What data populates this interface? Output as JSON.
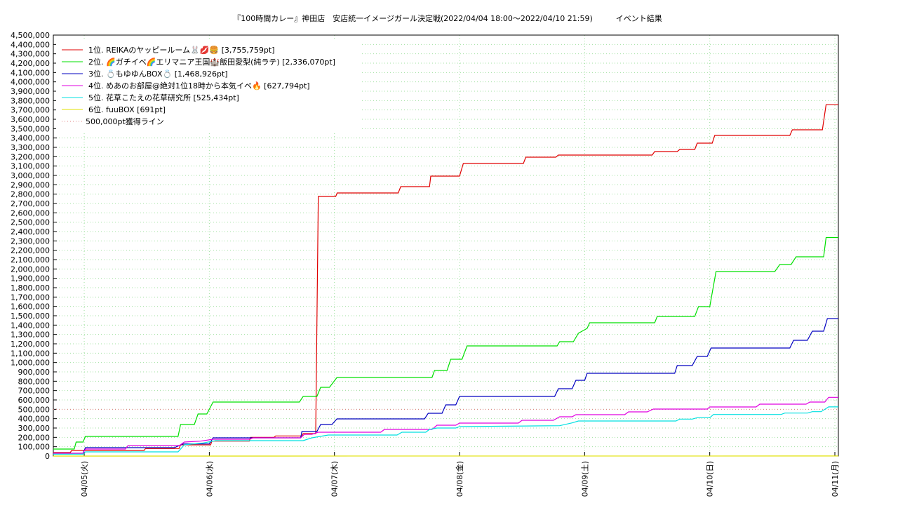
{
  "chart_data": {
    "type": "line",
    "title": "『100時間カレー』神田店　安店統一イメージガール決定戦(2022/04/04 18:00～2022/04/10 21:59)　　　イベント結果",
    "xlim": [
      4.753,
      11.028
    ],
    "xticks": [
      {
        "value": 5,
        "label": "04/05(火)"
      },
      {
        "value": 6,
        "label": "04/06(水)"
      },
      {
        "value": 7,
        "label": "04/07(木)"
      },
      {
        "value": 8,
        "label": "04/08(金)"
      },
      {
        "value": 9,
        "label": "04/09(土)"
      },
      {
        "value": 10,
        "label": "04/10(日)"
      },
      {
        "value": 11,
        "label": "04/11(月)"
      }
    ],
    "ylim": [
      0,
      4500000
    ],
    "yticks": [
      0,
      {
        "value": 100000,
        "label": "100,000"
      },
      {
        "value": 200000,
        "label": "200,000"
      },
      {
        "value": 300000,
        "label": "300,000"
      },
      {
        "value": 400000,
        "label": "400,000"
      },
      {
        "value": 500000,
        "label": "500,000"
      },
      {
        "value": 600000,
        "label": "600,000"
      },
      {
        "value": 700000,
        "label": "700,000"
      },
      {
        "value": 800000,
        "label": "800,000"
      },
      {
        "value": 900000,
        "label": "900,000"
      },
      {
        "value": 1000000,
        "label": "1,000,000"
      },
      {
        "value": 1100000,
        "label": "1,100,000"
      },
      {
        "value": 1200000,
        "label": "1,200,000"
      },
      {
        "value": 1300000,
        "label": "1,300,000"
      },
      {
        "value": 1400000,
        "label": "1,400,000"
      },
      {
        "value": 1500000,
        "label": "1,500,000"
      },
      {
        "value": 1600000,
        "label": "1,600,000"
      },
      {
        "value": 1700000,
        "label": "1,700,000"
      },
      {
        "value": 1800000,
        "label": "1,800,000"
      },
      {
        "value": 1900000,
        "label": "1,900,000"
      },
      {
        "value": 2000000,
        "label": "2,000,000"
      },
      {
        "value": 2100000,
        "label": "2,100,000"
      },
      {
        "value": 2200000,
        "label": "2,200,000"
      },
      {
        "value": 2300000,
        "label": "2,300,000"
      },
      {
        "value": 2400000,
        "label": "2,400,000"
      },
      {
        "value": 2500000,
        "label": "2,500,000"
      },
      {
        "value": 2600000,
        "label": "2,600,000"
      },
      {
        "value": 2700000,
        "label": "2,700,000"
      },
      {
        "value": 2800000,
        "label": "2,800,000"
      },
      {
        "value": 2900000,
        "label": "2,900,000"
      },
      {
        "value": 3000000,
        "label": "3,000,000"
      },
      {
        "value": 3100000,
        "label": "3,100,000"
      },
      {
        "value": 3200000,
        "label": "3,200,000"
      },
      {
        "value": 3300000,
        "label": "3,300,000"
      },
      {
        "value": 3400000,
        "label": "3,400,000"
      },
      {
        "value": 3500000,
        "label": "3,500,000"
      },
      {
        "value": 3600000,
        "label": "3,600,000"
      },
      {
        "value": 3700000,
        "label": "3,700,000"
      },
      {
        "value": 3800000,
        "label": "3,800,000"
      },
      {
        "value": 3900000,
        "label": "3,900,000"
      },
      {
        "value": 4000000,
        "label": "4,000,000"
      },
      {
        "value": 4100000,
        "label": "4,100,000"
      },
      {
        "value": 4200000,
        "label": "4,200,000"
      },
      {
        "value": 4300000,
        "label": "4,300,000"
      },
      {
        "value": 4400000,
        "label": "4,400,000"
      },
      {
        "value": 4500000,
        "label": "4,500,000"
      }
    ],
    "grid": true,
    "legend": "upper left",
    "series": [
      {
        "name": "1位. REIKAのヤッピールーム🐰💋🍔 [3,755,759pt]",
        "color": "#e00000",
        "x": [
          4.753,
          4.888,
          4.9,
          5.478,
          5.49,
          5.758,
          5.77,
          6.011,
          6.02,
          6.32,
          6.33,
          6.517,
          6.53,
          6.742,
          6.75,
          6.85,
          6.871,
          7.01,
          7.022,
          7.51,
          7.53,
          7.76,
          7.77,
          8.0,
          8.03,
          8.51,
          8.53,
          8.77,
          8.79,
          9.54,
          9.56,
          9.74,
          9.76,
          9.88,
          9.9,
          10.02,
          10.04,
          10.64,
          10.66,
          10.9,
          10.93,
          11.028
        ],
        "values": [
          37500,
          37500,
          60000,
          60000,
          80000,
          80000,
          120000,
          120000,
          160000,
          160000,
          200000,
          200000,
          215000,
          215000,
          240000,
          240000,
          2775000,
          2775000,
          2812500,
          2812500,
          2880000,
          2880000,
          2992500,
          2992500,
          3127500,
          3127500,
          3195000,
          3195000,
          3217500,
          3217500,
          3255000,
          3255000,
          3277500,
          3277500,
          3345000,
          3345000,
          3427500,
          3427500,
          3487500,
          3487500,
          3755759,
          3755759
        ]
      },
      {
        "name": "2位. 🌈ガチイベ🌈エリマニア王国🏰飯田愛梨(純ラテ) [2,336,070pt]",
        "color": "#00e000",
        "x": [
          4.753,
          4.92,
          4.935,
          4.99,
          5.01,
          5.75,
          5.77,
          5.88,
          5.91,
          5.98,
          6.03,
          6.72,
          6.75,
          6.86,
          6.89,
          6.96,
          7.02,
          7.78,
          7.8,
          7.9,
          7.93,
          8.02,
          8.06,
          8.78,
          8.8,
          8.91,
          8.95,
          9.02,
          9.04,
          9.56,
          9.58,
          9.88,
          9.91,
          10.0,
          10.05,
          10.52,
          10.56,
          10.65,
          10.69,
          10.91,
          10.93,
          11.028
        ],
        "values": [
          75000,
          75000,
          150000,
          150000,
          210000,
          210000,
          337500,
          337500,
          450000,
          450000,
          577500,
          577500,
          637500,
          637500,
          735000,
          735000,
          840000,
          840000,
          915000,
          915000,
          1035000,
          1035000,
          1177500,
          1177500,
          1222500,
          1222500,
          1312500,
          1365000,
          1425000,
          1425000,
          1492500,
          1492500,
          1597500,
          1597500,
          1972500,
          1972500,
          2047500,
          2047500,
          2130000,
          2130000,
          2336070,
          2336070
        ]
      },
      {
        "name": "3位. 💍もゆゆんBOX💍 [1,468,926pt]",
        "color": "#0000c0",
        "x": [
          4.753,
          4.99,
          5.01,
          5.72,
          5.79,
          6.0,
          6.03,
          6.73,
          6.74,
          6.86,
          6.89,
          6.98,
          7.02,
          7.72,
          7.75,
          7.86,
          7.89,
          7.97,
          8.0,
          8.76,
          8.79,
          8.9,
          8.93,
          9.0,
          9.02,
          9.72,
          9.74,
          9.86,
          9.9,
          9.98,
          10.01,
          10.64,
          10.67,
          10.78,
          10.82,
          10.91,
          10.94,
          11.028
        ],
        "values": [
          30000,
          30000,
          90000,
          90000,
          130000,
          130000,
          195000,
          195000,
          262500,
          262500,
          337500,
          337500,
          397500,
          397500,
          457500,
          457500,
          547500,
          547500,
          637500,
          637500,
          720000,
          720000,
          810000,
          810000,
          885000,
          885000,
          967500,
          967500,
          1065000,
          1065000,
          1155000,
          1155000,
          1237500,
          1237500,
          1335000,
          1335000,
          1468926,
          1468926
        ]
      },
      {
        "name": "4位. めあのお部屋@絶対1位18時から本気イベ🔥 [627,794pt]",
        "color": "#e000e0",
        "x": [
          4.753,
          4.99,
          5.01,
          5.33,
          5.35,
          5.76,
          5.8,
          5.93,
          6.03,
          6.32,
          6.35,
          6.73,
          6.76,
          6.82,
          6.87,
          7.37,
          7.4,
          7.78,
          7.82,
          7.97,
          8.0,
          8.47,
          8.5,
          8.75,
          8.8,
          8.9,
          8.93,
          9.32,
          9.35,
          9.5,
          9.55,
          9.98,
          10.0,
          10.37,
          10.4,
          10.77,
          10.8,
          10.92,
          10.95,
          11.028
        ],
        "values": [
          30000,
          30000,
          75000,
          75000,
          112500,
          112500,
          150000,
          160000,
          180000,
          180000,
          195000,
          195000,
          232500,
          232500,
          255000,
          255000,
          285000,
          285000,
          330000,
          330000,
          352500,
          352500,
          382500,
          382500,
          420000,
          420000,
          442500,
          442500,
          472500,
          472500,
          502500,
          502500,
          525000,
          525000,
          555000,
          555000,
          577500,
          577500,
          627794,
          627794
        ]
      },
      {
        "name": "5位. 花草こたえの花草研究所 [525,434pt]",
        "color": "#00e0e0",
        "x": [
          4.753,
          4.99,
          5.01,
          5.75,
          5.8,
          5.95,
          6.05,
          6.75,
          6.82,
          6.95,
          7.5,
          7.54,
          7.73,
          7.76,
          7.82,
          7.97,
          8.0,
          8.8,
          8.9,
          8.95,
          9.73,
          9.76,
          9.86,
          9.9,
          10.0,
          10.03,
          10.57,
          10.6,
          10.78,
          10.82,
          10.89,
          10.95,
          11.028
        ],
        "values": [
          20000,
          20000,
          45000,
          45000,
          120000,
          140000,
          165000,
          165000,
          195000,
          225000,
          225000,
          255000,
          255000,
          285000,
          300000,
          300000,
          315000,
          325000,
          355000,
          375000,
          375000,
          395000,
          395000,
          410000,
          410000,
          445000,
          445000,
          460000,
          460000,
          475000,
          475000,
          525434,
          525434
        ]
      },
      {
        "name": "6位. fuuBOX [691pt]",
        "color": "#e0e000",
        "x": [
          4.753,
          11.028
        ],
        "values": [
          0,
          691
        ]
      }
    ],
    "reference_line": {
      "name": "500,000pt獲得ライン",
      "value": 500000,
      "color": "#e08080"
    }
  }
}
